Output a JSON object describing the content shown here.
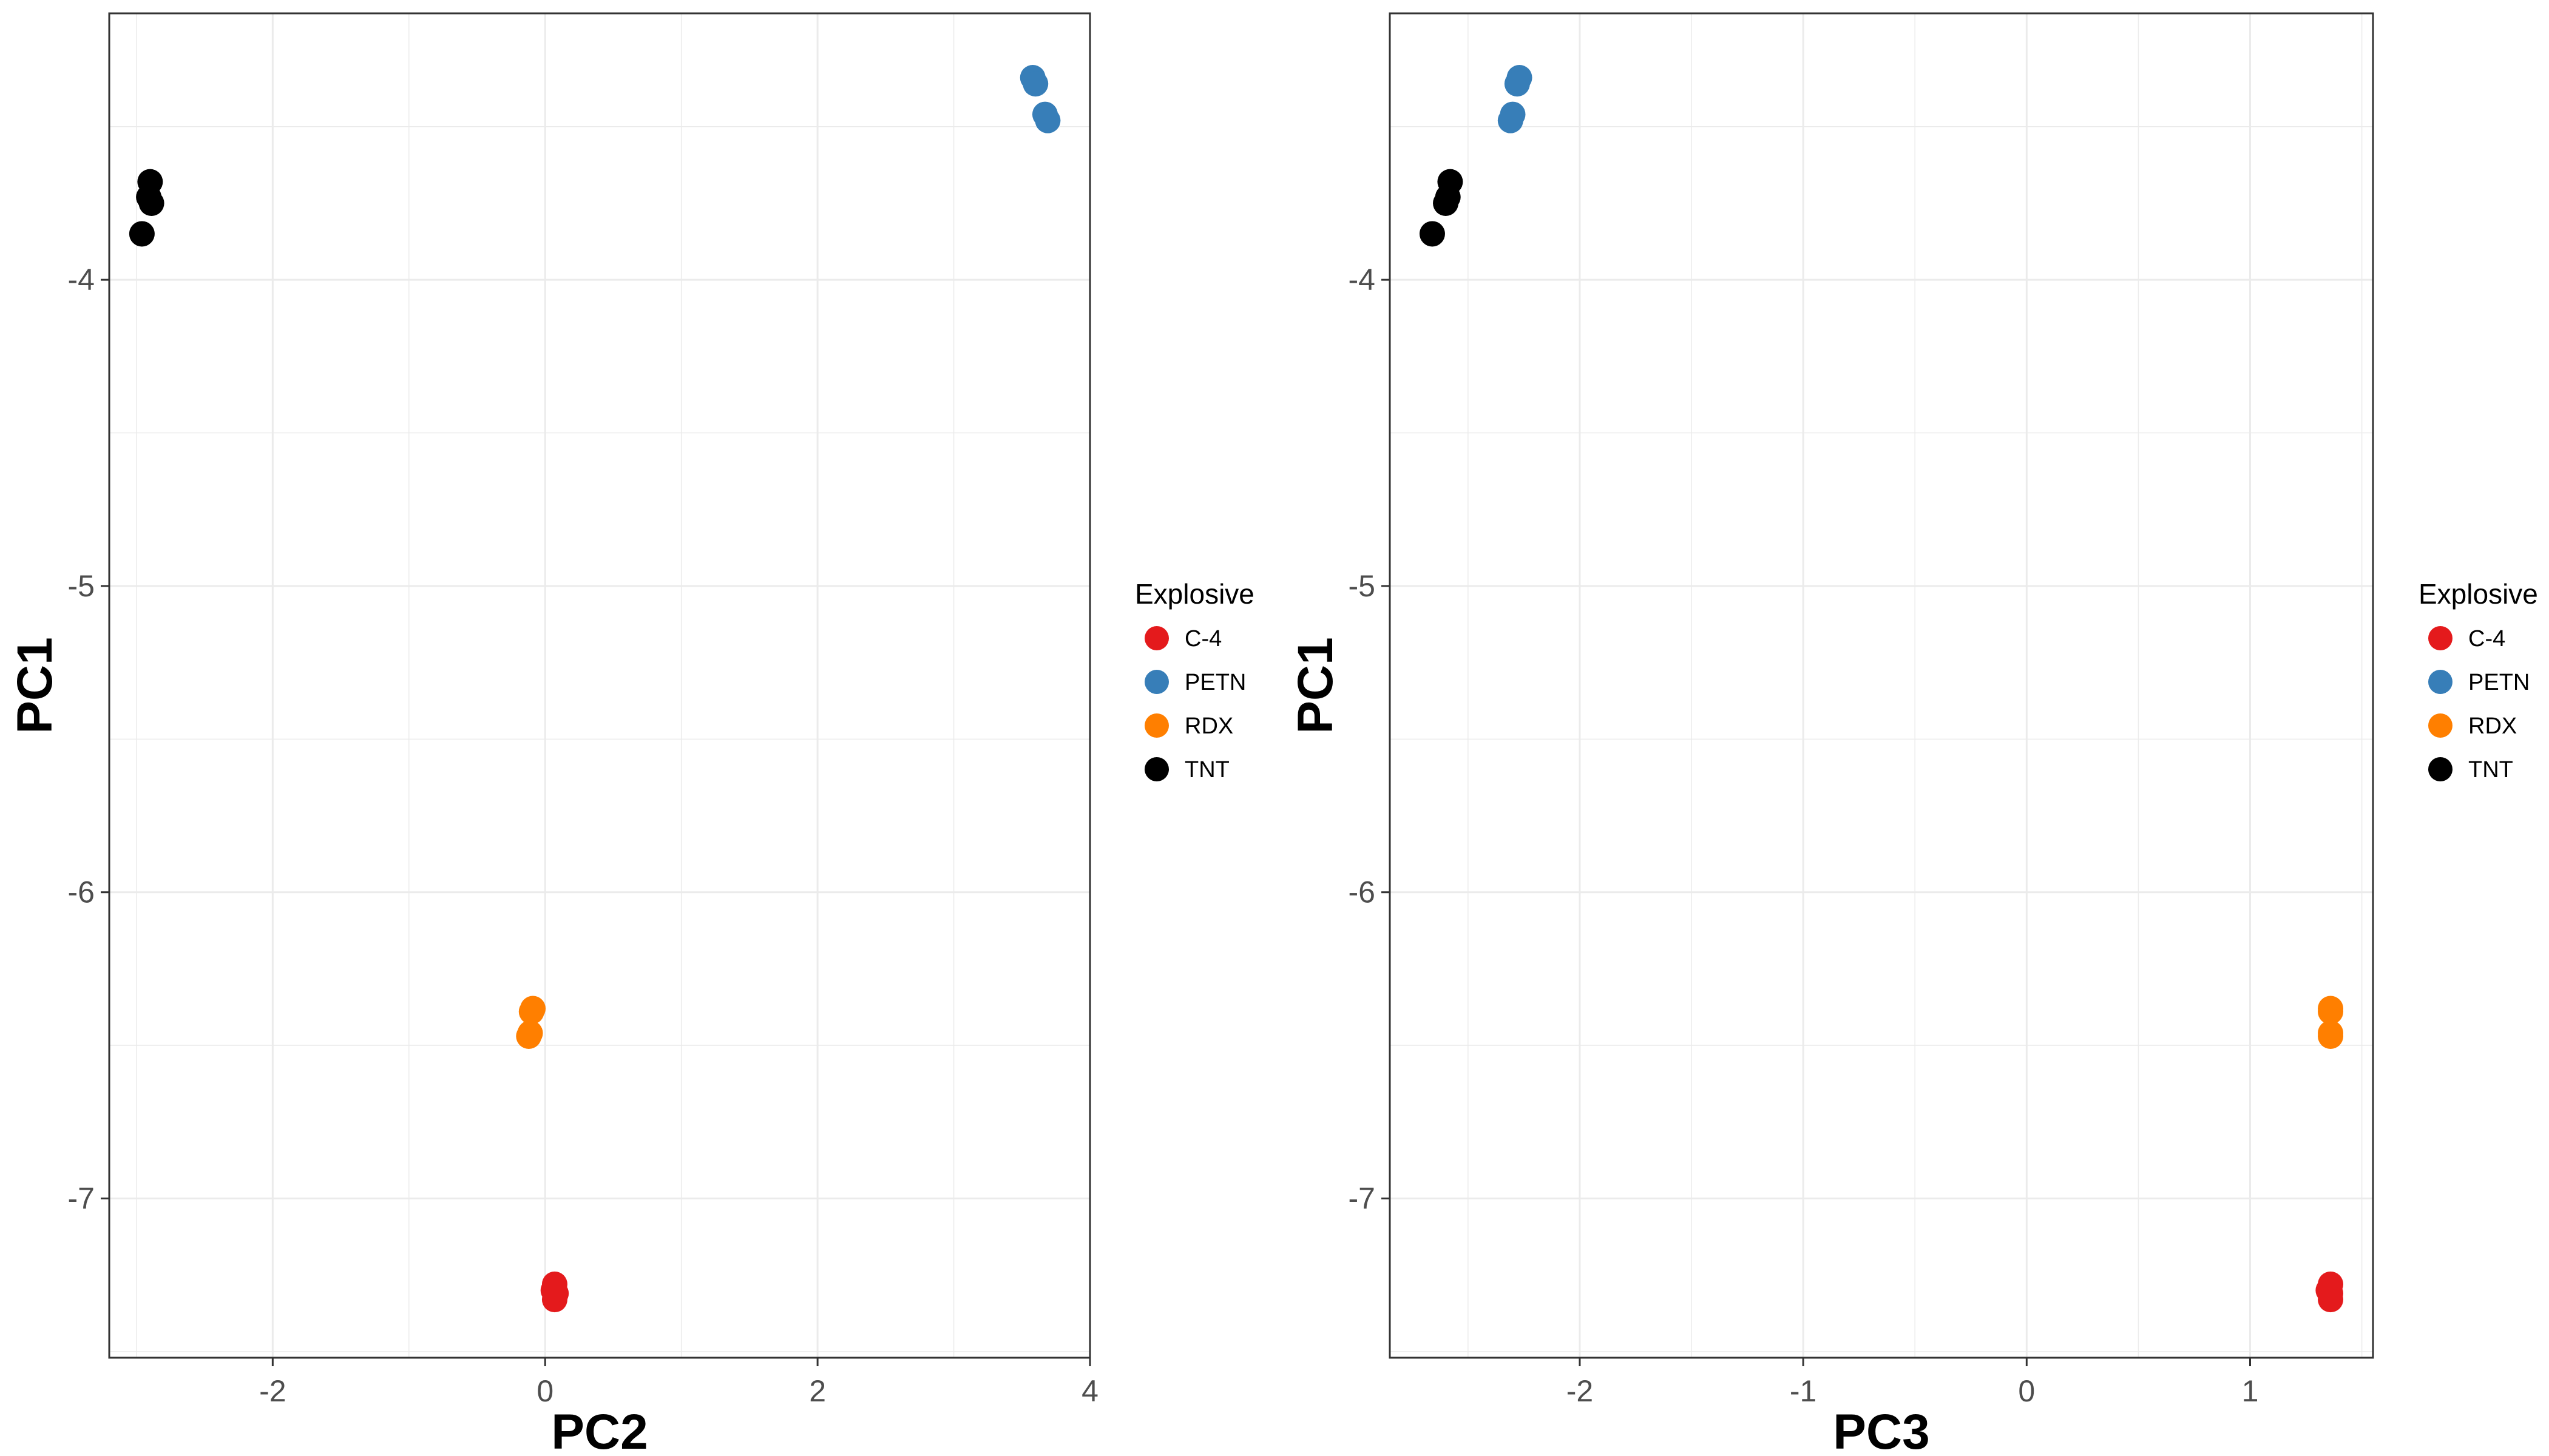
{
  "chart_data": [
    {
      "type": "scatter",
      "title": "",
      "xlabel": "PC2",
      "ylabel": "PC1",
      "xlim": [
        -3.2,
        4.0
      ],
      "ylim": [
        -7.52,
        -3.13
      ],
      "x_ticks": [
        {
          "value": -2,
          "label": "-2"
        },
        {
          "value": 0,
          "label": "0"
        },
        {
          "value": 2,
          "label": "2"
        },
        {
          "value": 4,
          "label": "4"
        }
      ],
      "y_ticks": [
        {
          "value": -4,
          "label": "-4"
        },
        {
          "value": -5,
          "label": "-5"
        },
        {
          "value": -6,
          "label": "-6"
        },
        {
          "value": -7,
          "label": "-7"
        }
      ],
      "grid": true,
      "legend_placement": "right",
      "legend_title": "Explosive",
      "series": [
        {
          "name": "C-4",
          "color": "#e41a1c",
          "points": [
            [
              0.07,
              -7.28
            ],
            [
              0.08,
              -7.31
            ],
            [
              0.07,
              -7.33
            ],
            [
              0.06,
              -7.3
            ]
          ]
        },
        {
          "name": "PETN",
          "color": "#377eb8",
          "points": [
            [
              3.58,
              -3.34
            ],
            [
              3.6,
              -3.36
            ],
            [
              3.67,
              -3.46
            ],
            [
              3.69,
              -3.48
            ]
          ]
        },
        {
          "name": "RDX",
          "color": "#ff7f00",
          "points": [
            [
              -0.09,
              -6.38
            ],
            [
              -0.1,
              -6.39
            ],
            [
              -0.11,
              -6.46
            ],
            [
              -0.12,
              -6.47
            ]
          ]
        },
        {
          "name": "TNT",
          "color": "#000000",
          "points": [
            [
              -2.9,
              -3.68
            ],
            [
              -2.91,
              -3.73
            ],
            [
              -2.89,
              -3.75
            ],
            [
              -2.96,
              -3.85
            ]
          ]
        }
      ]
    },
    {
      "type": "scatter",
      "title": "",
      "xlabel": "PC3",
      "ylabel": "PC1",
      "xlim": [
        -2.85,
        1.55
      ],
      "ylim": [
        -7.52,
        -3.13
      ],
      "x_ticks": [
        {
          "value": -2,
          "label": "-2"
        },
        {
          "value": -1,
          "label": "-1"
        },
        {
          "value": 0,
          "label": "0"
        },
        {
          "value": 1,
          "label": "1"
        }
      ],
      "y_ticks": [
        {
          "value": -4,
          "label": "-4"
        },
        {
          "value": -5,
          "label": "-5"
        },
        {
          "value": -6,
          "label": "-6"
        },
        {
          "value": -7,
          "label": "-7"
        }
      ],
      "grid": true,
      "legend_placement": "right",
      "legend_title": "Explosive",
      "series": [
        {
          "name": "C-4",
          "color": "#e41a1c",
          "points": [
            [
              1.36,
              -7.28
            ],
            [
              1.36,
              -7.31
            ],
            [
              1.36,
              -7.33
            ],
            [
              1.35,
              -7.3
            ]
          ]
        },
        {
          "name": "PETN",
          "color": "#377eb8",
          "points": [
            [
              -2.27,
              -3.34
            ],
            [
              -2.28,
              -3.36
            ],
            [
              -2.3,
              -3.46
            ],
            [
              -2.31,
              -3.48
            ]
          ]
        },
        {
          "name": "RDX",
          "color": "#ff7f00",
          "points": [
            [
              1.36,
              -6.38
            ],
            [
              1.36,
              -6.39
            ],
            [
              1.36,
              -6.46
            ],
            [
              1.36,
              -6.47
            ]
          ]
        },
        {
          "name": "TNT",
          "color": "#000000",
          "points": [
            [
              -2.58,
              -3.68
            ],
            [
              -2.59,
              -3.73
            ],
            [
              -2.6,
              -3.75
            ],
            [
              -2.66,
              -3.85
            ]
          ]
        }
      ]
    }
  ]
}
